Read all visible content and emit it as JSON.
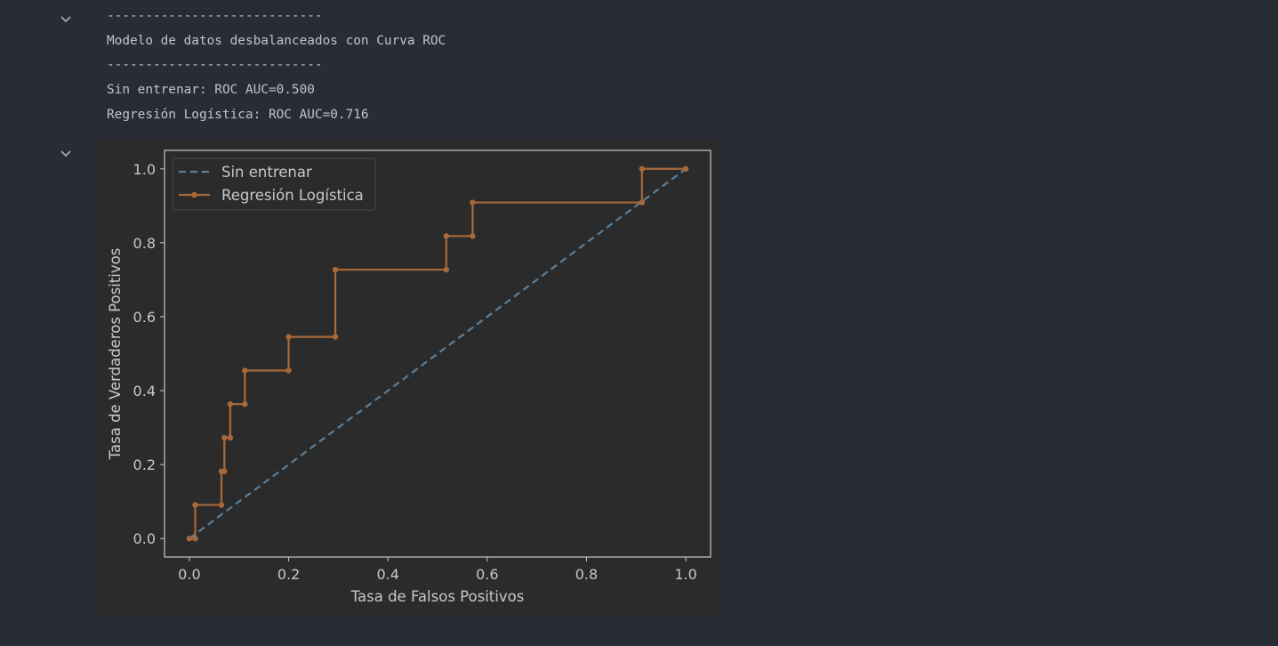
{
  "output_lines": [
    "----------------------------",
    "Modelo de datos desbalanceados con Curva ROC",
    "----------------------------",
    "Sin entrenar: ROC AUC=0.500",
    "Regresión Logística: ROC AUC=0.716"
  ],
  "icons": {
    "collapse_output": "chevron-down-icon",
    "collapse_plot": "chevron-down-icon"
  },
  "chart_data": {
    "type": "line",
    "title": "",
    "xlabel": "Tasa de Falsos Positivos",
    "ylabel": "Tasa de Verdaderos Positivos",
    "xlim": [
      -0.05,
      1.05
    ],
    "ylim": [
      -0.05,
      1.05
    ],
    "xticks": [
      "0.0",
      "0.2",
      "0.4",
      "0.6",
      "0.8",
      "1.0"
    ],
    "yticks": [
      "0.0",
      "0.2",
      "0.4",
      "0.6",
      "0.8",
      "1.0"
    ],
    "legend_position": "top-left",
    "grid": false,
    "series": [
      {
        "name": "Sin entrenar",
        "style": "dashed",
        "color": "#5b7f99",
        "x": [
          0,
          1
        ],
        "y": [
          0,
          1
        ]
      },
      {
        "name": "Regresión Logística",
        "style": "solid-markers",
        "color": "#a8693a",
        "x": [
          0.0,
          0.0118,
          0.0118,
          0.0647,
          0.0647,
          0.0706,
          0.0706,
          0.0824,
          0.0824,
          0.1118,
          0.1118,
          0.2,
          0.2,
          0.2941,
          0.2941,
          0.5176,
          0.5176,
          0.5706,
          0.5706,
          0.9118,
          0.9118,
          1.0
        ],
        "y": [
          0.0,
          0.0,
          0.0909,
          0.0909,
          0.1818,
          0.1818,
          0.2727,
          0.2727,
          0.3636,
          0.3636,
          0.4545,
          0.4545,
          0.5455,
          0.5455,
          0.7273,
          0.7273,
          0.8182,
          0.8182,
          0.9091,
          0.9091,
          1.0,
          1.0
        ]
      }
    ]
  }
}
